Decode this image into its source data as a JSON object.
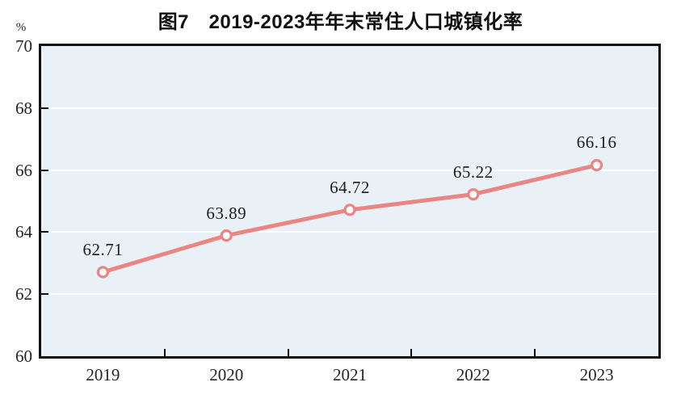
{
  "title": "图7　2019-2023年年末常住人口城镇化率",
  "unit_label": "%",
  "colors": {
    "line": "#e98583",
    "marker_fill": "#ffffff",
    "plot_bg": "#e9f1f6",
    "grid": "#ffffff",
    "axis": "#0f0f0f",
    "text": "#262626"
  },
  "chart_data": {
    "type": "line",
    "title": "图7　2019-2023年年末常住人口城镇化率",
    "categories": [
      "2019",
      "2020",
      "2021",
      "2022",
      "2023"
    ],
    "values": [
      62.71,
      63.89,
      64.72,
      65.22,
      66.16
    ],
    "point_labels": [
      "62.71",
      "63.89",
      "64.72",
      "65.22",
      "66.16"
    ],
    "ylabel": "%",
    "xlabel": "",
    "ylim": [
      60,
      70
    ],
    "ytick_step": 2,
    "yticks": [
      60,
      62,
      64,
      66,
      68,
      70
    ],
    "grid": "horizontal-white",
    "legend": "none",
    "marker": "open-circle"
  }
}
